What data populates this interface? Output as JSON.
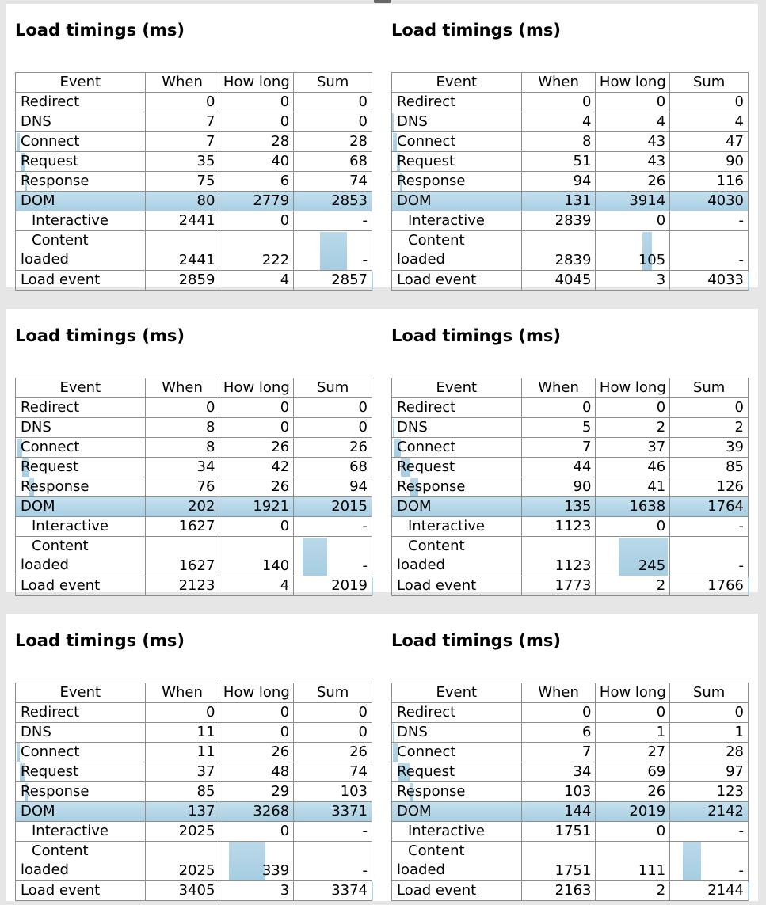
{
  "panels": [
    {
      "title": "Load timings (ms)",
      "headers": [
        "Event",
        "When",
        "How long",
        "Sum"
      ],
      "rows": [
        {
          "event": "Redirect",
          "when": "0",
          "how_long": "0",
          "sum": "0"
        },
        {
          "event": "DNS",
          "when": "7",
          "how_long": "0",
          "sum": "0"
        },
        {
          "event": "Connect",
          "when": "7",
          "how_long": "28",
          "sum": "28"
        },
        {
          "event": "Request",
          "when": "35",
          "how_long": "40",
          "sum": "68"
        },
        {
          "event": "Response",
          "when": "75",
          "how_long": "6",
          "sum": "74"
        },
        {
          "event": "DOM",
          "when": "80",
          "how_long": "2779",
          "sum": "2853"
        },
        {
          "event": "Interactive",
          "when": "2441",
          "how_long": "0",
          "sum": "-"
        },
        {
          "event": "Content loaded",
          "line1": "Content",
          "line2": "loaded",
          "when": "2441",
          "how_long": "222",
          "sum": "-"
        },
        {
          "event": "Load event",
          "when": "2859",
          "how_long": "4",
          "sum": "2857"
        }
      ]
    },
    {
      "title": "Load timings (ms)",
      "headers": [
        "Event",
        "When",
        "How long",
        "Sum"
      ],
      "rows": [
        {
          "event": "Redirect",
          "when": "0",
          "how_long": "0",
          "sum": "0"
        },
        {
          "event": "DNS",
          "when": "4",
          "how_long": "4",
          "sum": "4"
        },
        {
          "event": "Connect",
          "when": "8",
          "how_long": "43",
          "sum": "47"
        },
        {
          "event": "Request",
          "when": "51",
          "how_long": "43",
          "sum": "90"
        },
        {
          "event": "Response",
          "when": "94",
          "how_long": "26",
          "sum": "116"
        },
        {
          "event": "DOM",
          "when": "131",
          "how_long": "3914",
          "sum": "4030"
        },
        {
          "event": "Interactive",
          "when": "2839",
          "how_long": "0",
          "sum": "-"
        },
        {
          "event": "Content loaded",
          "line1": "Content",
          "line2": "loaded",
          "when": "2839",
          "how_long": "105",
          "sum": "-"
        },
        {
          "event": "Load event",
          "when": "4045",
          "how_long": "3",
          "sum": "4033"
        }
      ]
    },
    {
      "title": "Load timings (ms)",
      "headers": [
        "Event",
        "When",
        "How long",
        "Sum"
      ],
      "rows": [
        {
          "event": "Redirect",
          "when": "0",
          "how_long": "0",
          "sum": "0"
        },
        {
          "event": "DNS",
          "when": "8",
          "how_long": "0",
          "sum": "0"
        },
        {
          "event": "Connect",
          "when": "8",
          "how_long": "26",
          "sum": "26"
        },
        {
          "event": "Request",
          "when": "34",
          "how_long": "42",
          "sum": "68"
        },
        {
          "event": "Response",
          "when": "76",
          "how_long": "26",
          "sum": "94"
        },
        {
          "event": "DOM",
          "when": "202",
          "how_long": "1921",
          "sum": "2015"
        },
        {
          "event": "Interactive",
          "when": "1627",
          "how_long": "0",
          "sum": "-"
        },
        {
          "event": "Content loaded",
          "line1": "Content",
          "line2": "loaded",
          "when": "1627",
          "how_long": "140",
          "sum": "-"
        },
        {
          "event": "Load event",
          "when": "2123",
          "how_long": "4",
          "sum": "2019"
        }
      ]
    },
    {
      "title": "Load timings (ms)",
      "headers": [
        "Event",
        "When",
        "How long",
        "Sum"
      ],
      "rows": [
        {
          "event": "Redirect",
          "when": "0",
          "how_long": "0",
          "sum": "0"
        },
        {
          "event": "DNS",
          "when": "5",
          "how_long": "2",
          "sum": "2"
        },
        {
          "event": "Connect",
          "when": "7",
          "how_long": "37",
          "sum": "39"
        },
        {
          "event": "Request",
          "when": "44",
          "how_long": "46",
          "sum": "85"
        },
        {
          "event": "Response",
          "when": "90",
          "how_long": "41",
          "sum": "126"
        },
        {
          "event": "DOM",
          "when": "135",
          "how_long": "1638",
          "sum": "1764"
        },
        {
          "event": "Interactive",
          "when": "1123",
          "how_long": "0",
          "sum": "-"
        },
        {
          "event": "Content loaded",
          "line1": "Content",
          "line2": "loaded",
          "when": "1123",
          "how_long": "245",
          "sum": "-"
        },
        {
          "event": "Load event",
          "when": "1773",
          "how_long": "2",
          "sum": "1766"
        }
      ]
    },
    {
      "title": "Load timings (ms)",
      "headers": [
        "Event",
        "When",
        "How long",
        "Sum"
      ],
      "rows": [
        {
          "event": "Redirect",
          "when": "0",
          "how_long": "0",
          "sum": "0"
        },
        {
          "event": "DNS",
          "when": "11",
          "how_long": "0",
          "sum": "0"
        },
        {
          "event": "Connect",
          "when": "11",
          "how_long": "26",
          "sum": "26"
        },
        {
          "event": "Request",
          "when": "37",
          "how_long": "48",
          "sum": "74"
        },
        {
          "event": "Response",
          "when": "85",
          "how_long": "29",
          "sum": "103"
        },
        {
          "event": "DOM",
          "when": "137",
          "how_long": "3268",
          "sum": "3371"
        },
        {
          "event": "Interactive",
          "when": "2025",
          "how_long": "0",
          "sum": "-"
        },
        {
          "event": "Content loaded",
          "line1": "Content",
          "line2": "loaded",
          "when": "2025",
          "how_long": "339",
          "sum": "-"
        },
        {
          "event": "Load event",
          "when": "3405",
          "how_long": "3",
          "sum": "3374"
        }
      ]
    },
    {
      "title": "Load timings (ms)",
      "headers": [
        "Event",
        "When",
        "How long",
        "Sum"
      ],
      "rows": [
        {
          "event": "Redirect",
          "when": "0",
          "how_long": "0",
          "sum": "0"
        },
        {
          "event": "DNS",
          "when": "6",
          "how_long": "1",
          "sum": "1"
        },
        {
          "event": "Connect",
          "when": "7",
          "how_long": "27",
          "sum": "28"
        },
        {
          "event": "Request",
          "when": "34",
          "how_long": "69",
          "sum": "97"
        },
        {
          "event": "Response",
          "when": "103",
          "how_long": "26",
          "sum": "123"
        },
        {
          "event": "DOM",
          "when": "144",
          "how_long": "2019",
          "sum": "2142"
        },
        {
          "event": "Interactive",
          "when": "1751",
          "how_long": "0",
          "sum": "-"
        },
        {
          "event": "Content loaded",
          "line1": "Content",
          "line2": "loaded",
          "when": "1751",
          "how_long": "111",
          "sum": "-"
        },
        {
          "event": "Load event",
          "when": "2163",
          "how_long": "2",
          "sum": "2144"
        }
      ]
    }
  ],
  "colors": {
    "bar": "#a9cfe3",
    "grid": "#8d8d8d",
    "band": "#ffffff",
    "background": "#e6e6e6"
  }
}
